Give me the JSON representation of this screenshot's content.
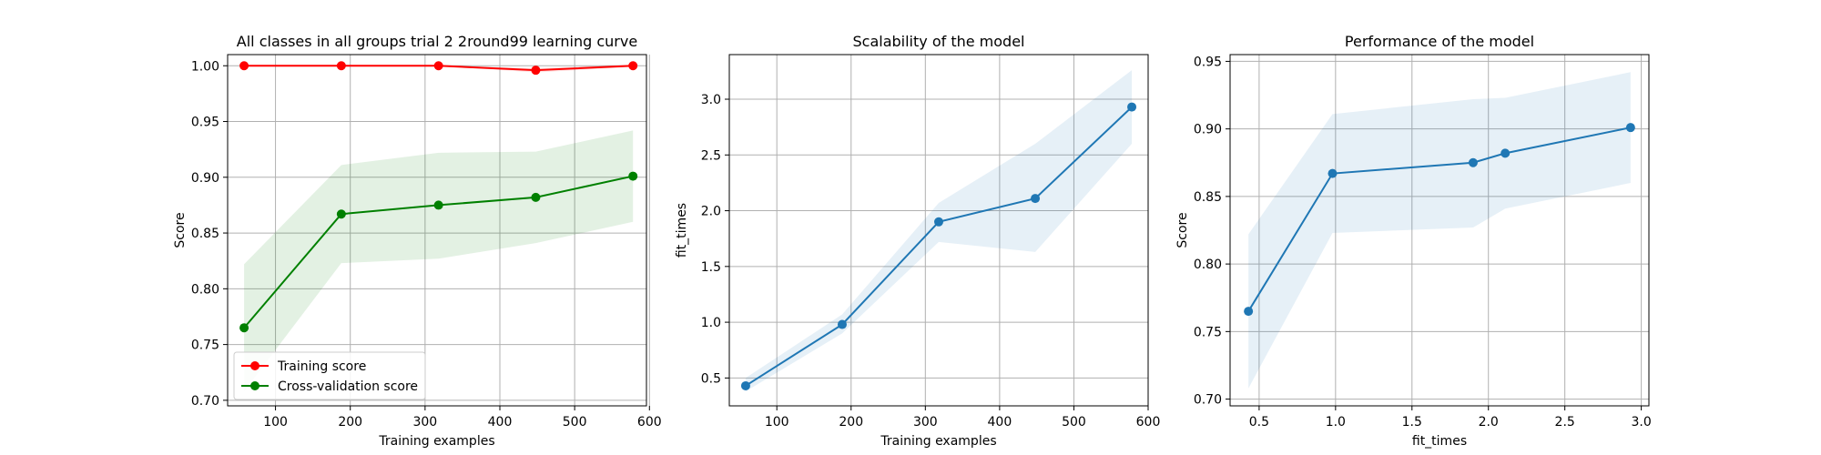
{
  "chart_data": [
    {
      "type": "line",
      "title": "All classes in all groups trial 2 2round99 learning curve",
      "xlabel": "Training examples",
      "ylabel": "Score",
      "xlim": [
        36,
        596
      ],
      "ylim": [
        0.695,
        1.01
      ],
      "xticks": [
        100,
        200,
        300,
        400,
        500,
        600
      ],
      "yticks": [
        0.7,
        0.75,
        0.8,
        0.85,
        0.9,
        0.95,
        1.0
      ],
      "ytick_labels": [
        "0.70",
        "0.75",
        "0.80",
        "0.85",
        "0.90",
        "0.95",
        "1.00"
      ],
      "grid": true,
      "legend_position": "lower-left",
      "x": [
        58,
        188,
        318,
        448,
        578
      ],
      "series": [
        {
          "name": "Training score",
          "color": "#ff0000",
          "values": [
            1.0,
            1.0,
            1.0,
            0.996,
            1.0
          ],
          "band_low": [
            1.0,
            1.0,
            1.0,
            0.994,
            0.999
          ],
          "band_high": [
            1.0,
            1.0,
            1.0,
            0.998,
            1.001
          ]
        },
        {
          "name": "Cross-validation score",
          "color": "#008000",
          "values": [
            0.765,
            0.867,
            0.875,
            0.882,
            0.901
          ],
          "band_low": [
            0.708,
            0.823,
            0.827,
            0.841,
            0.86
          ],
          "band_high": [
            0.822,
            0.911,
            0.922,
            0.923,
            0.942
          ]
        }
      ]
    },
    {
      "type": "line",
      "title": "Scalability of the model",
      "xlabel": "Training examples",
      "ylabel": "fit_times",
      "xlim": [
        36,
        600
      ],
      "ylim": [
        0.25,
        3.4
      ],
      "xticks": [
        100,
        200,
        300,
        400,
        500,
        600
      ],
      "yticks": [
        0.5,
        1.0,
        1.5,
        2.0,
        2.5,
        3.0
      ],
      "ytick_labels": [
        "0.5",
        "1.0",
        "1.5",
        "2.0",
        "2.5",
        "3.0"
      ],
      "grid": true,
      "x": [
        58,
        188,
        318,
        448,
        578
      ],
      "series": [
        {
          "color": "#1f77b4",
          "values": [
            0.43,
            0.98,
            1.9,
            2.11,
            2.93
          ],
          "band_low": [
            0.38,
            0.9,
            1.72,
            1.63,
            2.6
          ],
          "band_high": [
            0.5,
            1.07,
            2.07,
            2.6,
            3.26
          ]
        }
      ]
    },
    {
      "type": "line",
      "title": "Performance of the model",
      "xlabel": "fit_times",
      "ylabel": "Score",
      "xlim": [
        0.31,
        3.05
      ],
      "ylim": [
        0.695,
        0.955
      ],
      "xticks": [
        0.5,
        1.0,
        1.5,
        2.0,
        2.5,
        3.0
      ],
      "xtick_labels": [
        "0.5",
        "1.0",
        "1.5",
        "2.0",
        "2.5",
        "3.0"
      ],
      "yticks": [
        0.7,
        0.75,
        0.8,
        0.85,
        0.9,
        0.95
      ],
      "ytick_labels": [
        "0.70",
        "0.75",
        "0.80",
        "0.85",
        "0.90",
        "0.95"
      ],
      "grid": true,
      "x": [
        0.43,
        0.98,
        1.9,
        2.11,
        2.93
      ],
      "series": [
        {
          "color": "#1f77b4",
          "values": [
            0.765,
            0.867,
            0.875,
            0.882,
            0.901
          ],
          "band_low": [
            0.708,
            0.823,
            0.827,
            0.841,
            0.86
          ],
          "band_high": [
            0.822,
            0.911,
            0.922,
            0.923,
            0.942
          ]
        }
      ]
    }
  ]
}
